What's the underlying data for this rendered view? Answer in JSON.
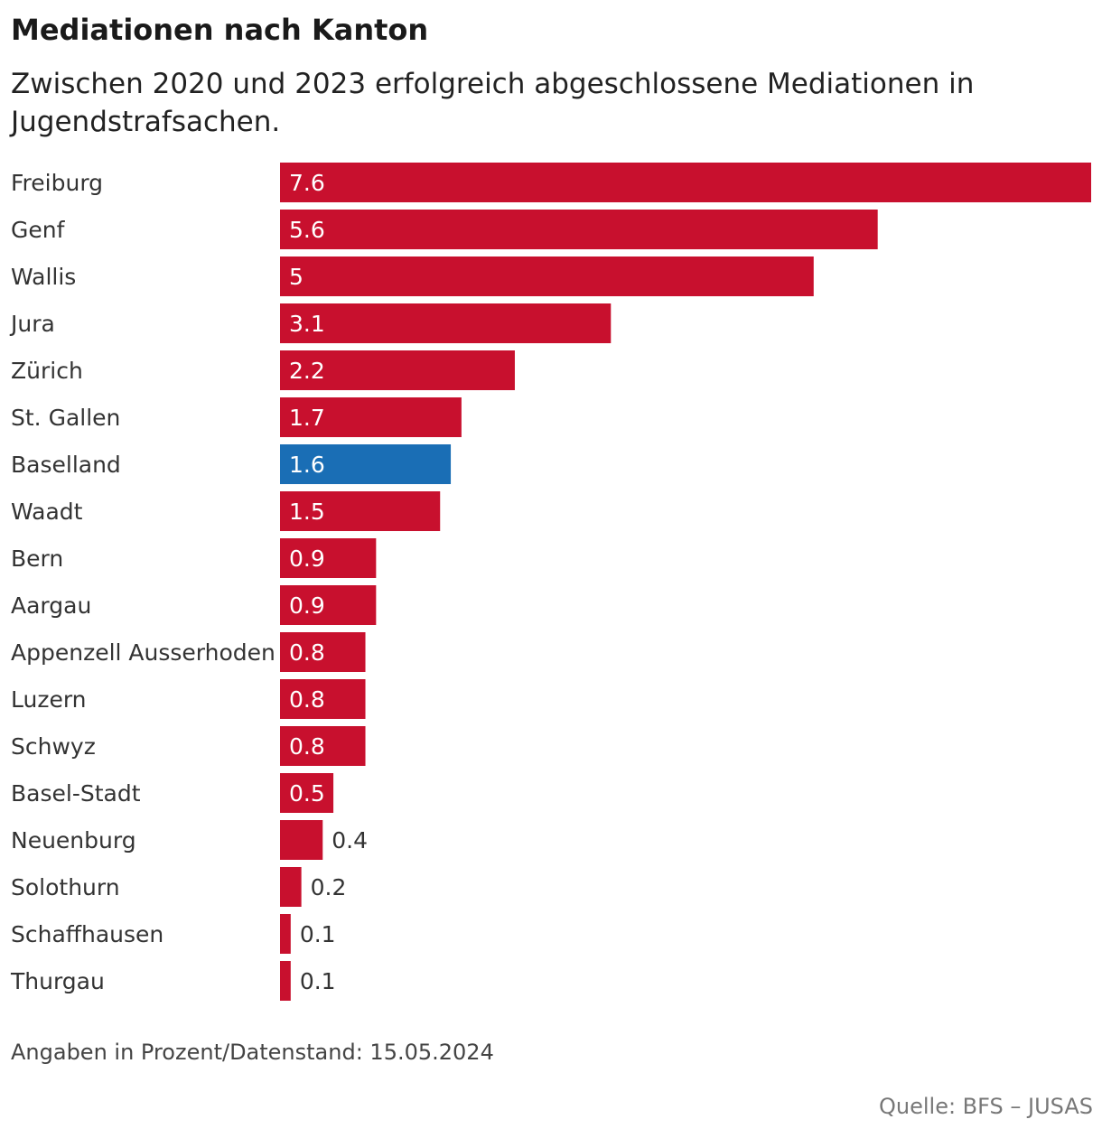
{
  "header": {
    "title": "Mediationen nach Kanton",
    "subtitle": "Zwischen 2020 und 2023 erfolgreich abgeschlossene Mediationen in Jugendstrafsachen."
  },
  "footer": {
    "note": "Angaben in Prozent/Datenstand: 15.05.2024",
    "source": "Quelle: BFS – JUSAS"
  },
  "colors": {
    "default_bar": "#c8102e",
    "highlight_bar": "#1a6eb5",
    "label_inside": "#ffffff",
    "label_outside": "#333333"
  },
  "chart_data": {
    "type": "bar",
    "orientation": "horizontal",
    "title": "Mediationen nach Kanton",
    "xlabel": "",
    "ylabel": "",
    "xlim": [
      0,
      7.6
    ],
    "grid": false,
    "legend": "none",
    "highlight": "Baselland",
    "categories": [
      "Freiburg",
      "Genf",
      "Wallis",
      "Jura",
      "Zürich",
      "St. Gallen",
      "Baselland",
      "Waadt",
      "Bern",
      "Aargau",
      "Appenzell Ausserhoden",
      "Luzern",
      "Schwyz",
      "Basel-Stadt",
      "Neuenburg",
      "Solothurn",
      "Schaffhausen",
      "Thurgau"
    ],
    "values": [
      7.6,
      5.6,
      5,
      3.1,
      2.2,
      1.7,
      1.6,
      1.5,
      0.9,
      0.9,
      0.8,
      0.8,
      0.8,
      0.5,
      0.4,
      0.2,
      0.1,
      0.1
    ],
    "value_labels": [
      "7.6",
      "5.6",
      "5",
      "3.1",
      "2.2",
      "1.7",
      "1.6",
      "1.5",
      "0.9",
      "0.9",
      "0.8",
      "0.8",
      "0.8",
      "0.5",
      "0.4",
      "0.2",
      "0.1",
      "0.1"
    ]
  }
}
